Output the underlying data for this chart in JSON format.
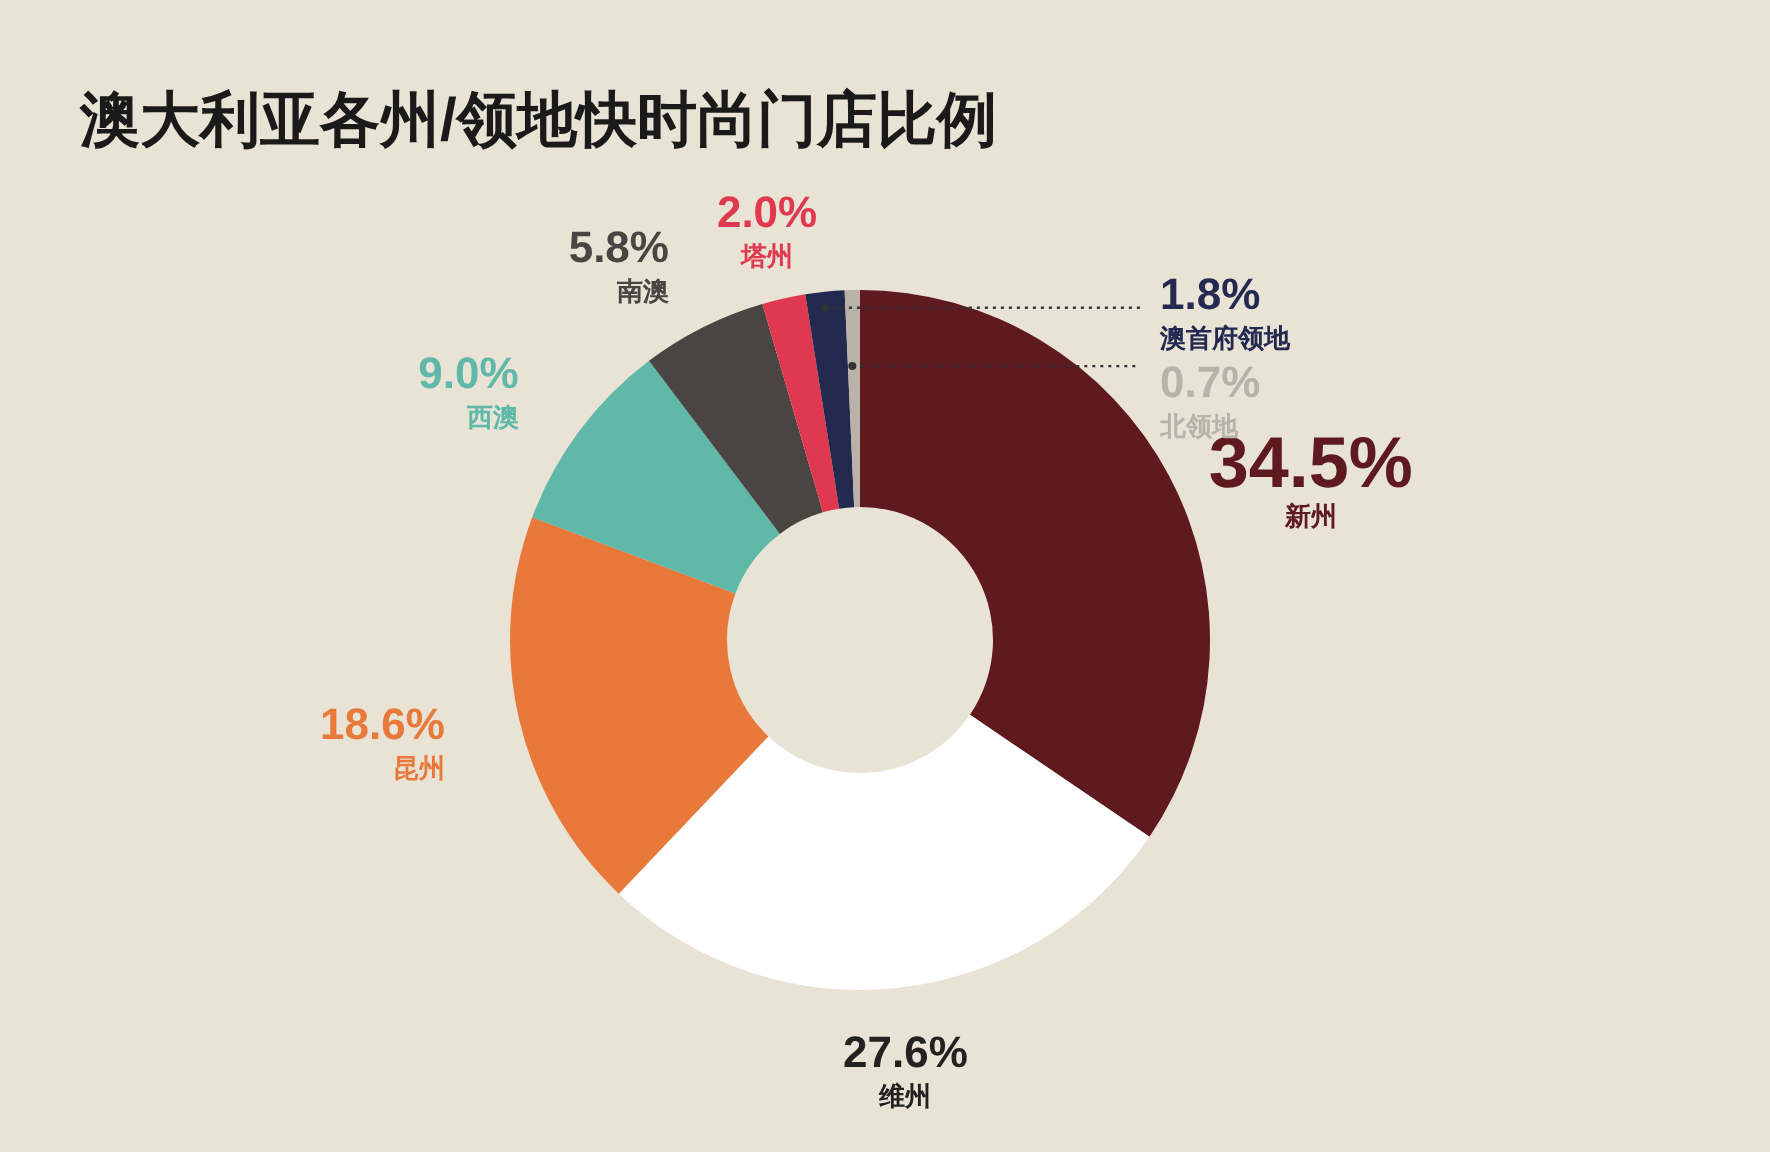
{
  "chart_data": {
    "type": "donut",
    "title": "澳大利亚各州/领地快时尚门店比例",
    "categories": [
      "新州",
      "维州",
      "昆州",
      "西澳",
      "南澳",
      "塔州",
      "澳首府领地",
      "北领地"
    ],
    "values": [
      34.5,
      27.6,
      18.6,
      9.0,
      5.8,
      2.0,
      1.8,
      0.7
    ],
    "value_labels": [
      "34.5%",
      "27.6%",
      "18.6%",
      "9.0%",
      "5.8%",
      "2.0%",
      "1.8%",
      "0.7%"
    ],
    "colors": [
      "#5e1a1f",
      "#ffffff",
      "#e8793a",
      "#5fb8a8",
      "#4a4542",
      "#e0394f",
      "#23294f",
      "#b8b2a8"
    ],
    "legend": false
  }
}
